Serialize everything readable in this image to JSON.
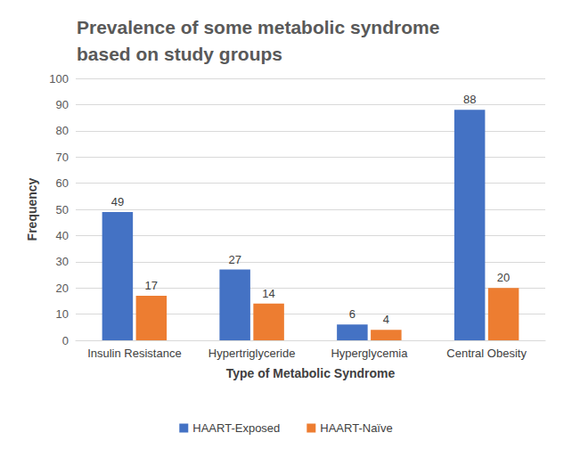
{
  "chart_data": {
    "type": "bar",
    "title": "Prevalence of some metabolic syndrome based on study groups",
    "x_label": "Type of Metabolic Syndrome",
    "y_label": "Frequency",
    "categories": [
      "Insulin Resistance",
      "Hypertriglyceride",
      "Hyperglycemia",
      "Central Obesity"
    ],
    "series": [
      {
        "name": "HAART-Exposed",
        "color": "#4472c4",
        "values": [
          49,
          27,
          6,
          88
        ]
      },
      {
        "name": "HAART-Naïve",
        "color": "#ed7d31",
        "values": [
          17,
          14,
          4,
          20
        ]
      }
    ],
    "ylim": [
      0,
      100
    ],
    "yticks": [
      0,
      10,
      20,
      30,
      40,
      50,
      60,
      70,
      80,
      90,
      100
    ],
    "grid": true,
    "legend": "bottom",
    "data_labels": true
  }
}
